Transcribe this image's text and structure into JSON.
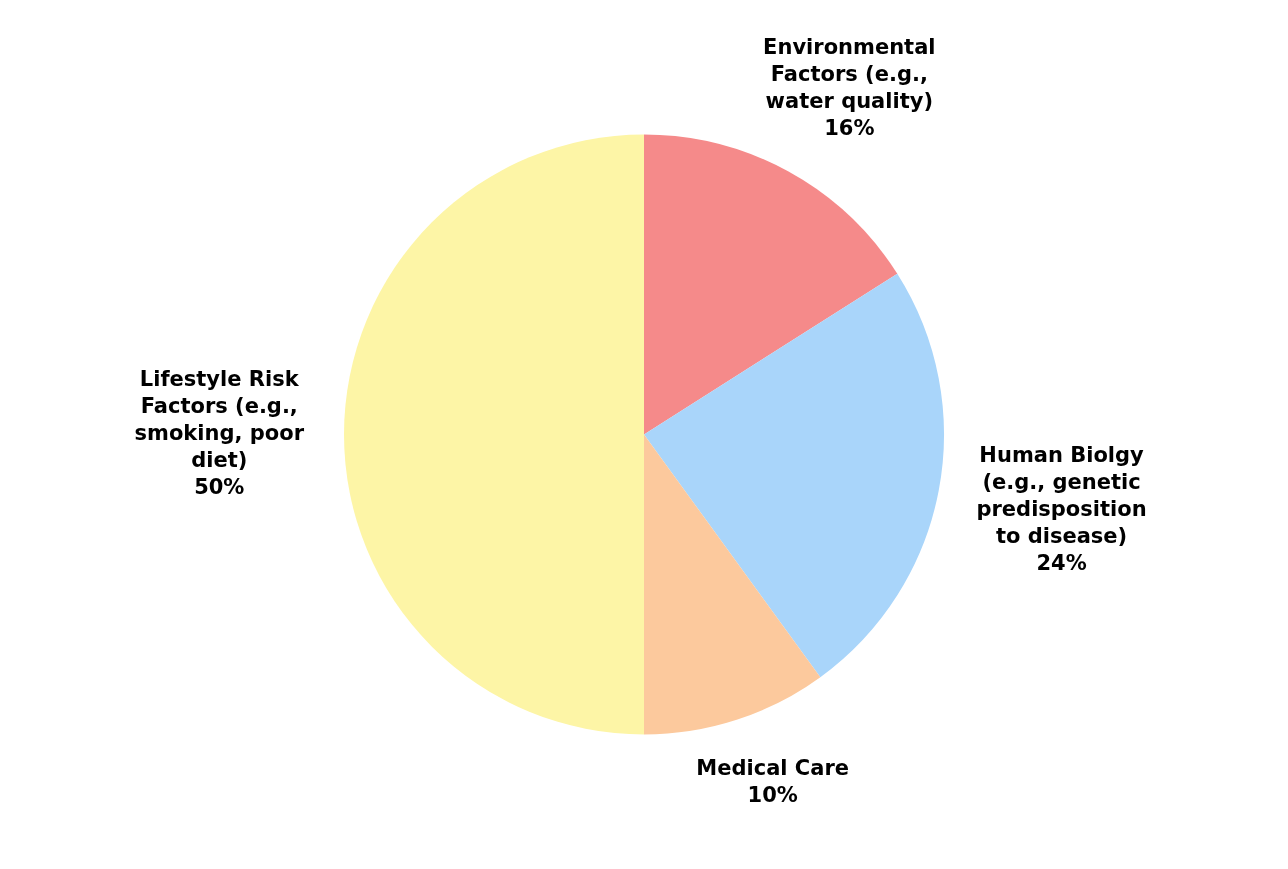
{
  "chart_data": {
    "type": "pie",
    "categories": [
      "Environmental Factors (e.g., water quality)",
      "Human Biolgy (e.g., genetic predisposition to disease)",
      "Medical Care",
      "Lifestyle Risk Factors (e.g., smoking, poor diet)"
    ],
    "values": [
      16,
      24,
      10,
      50
    ],
    "colors": [
      "#f58a8a",
      "#a9d5fa",
      "#fcc99d",
      "#fdf5a6"
    ],
    "value_labels": [
      "16%",
      "24%",
      "10%",
      "50%"
    ],
    "legend": false
  }
}
